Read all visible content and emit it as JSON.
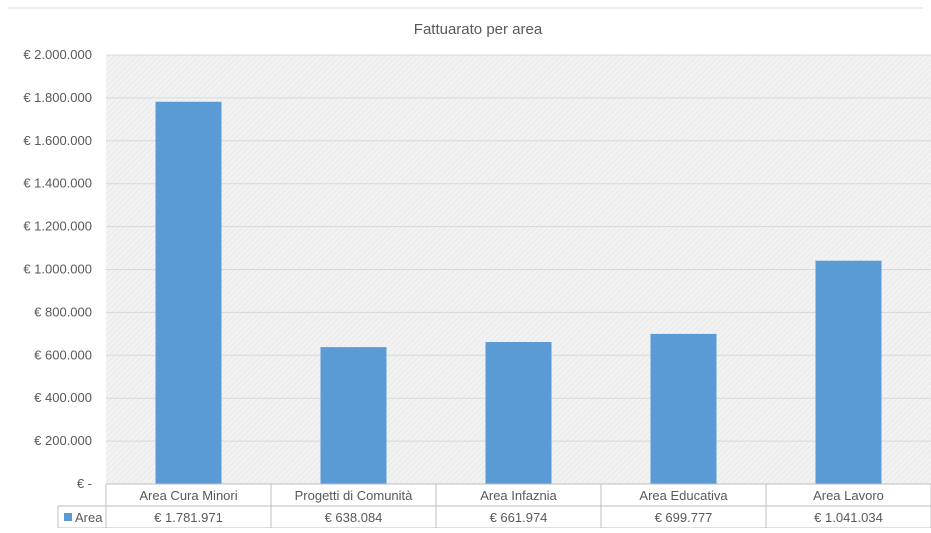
{
  "chart_data": {
    "type": "bar",
    "title": "Fattuarato per area",
    "categories": [
      "Area Cura Minori",
      "Progetti di Comunità",
      "Area Infaznia",
      "Area Educativa",
      "Area Lavoro"
    ],
    "series": [
      {
        "name": "Area",
        "values": [
          1781971,
          638084,
          661974,
          699777,
          1041034
        ],
        "value_labels": [
          "€ 1.781.971",
          "€ 638.084",
          "€ 661.974",
          "€ 699.777",
          "€ 1.041.034"
        ],
        "color": "#5b9bd5"
      }
    ],
    "ylim": [
      0,
      2000000
    ],
    "yticks": [
      0,
      200000,
      400000,
      600000,
      800000,
      1000000,
      1200000,
      1400000,
      1600000,
      1800000,
      2000000
    ],
    "ytick_labels": [
      "€ -",
      "€ 200.000",
      "€ 400.000",
      "€ 600.000",
      "€ 800.000",
      "€ 1.000.000",
      "€ 1.200.000",
      "€ 1.400.000",
      "€ 1.600.000",
      "€ 1.800.000",
      "€ 2.000.000"
    ],
    "grid": true,
    "legend": "data-table",
    "colors": {
      "bar": "#5b9bd5",
      "grid": "#d9d9d9",
      "text": "#595959",
      "table_border": "#bfbfbf"
    }
  }
}
